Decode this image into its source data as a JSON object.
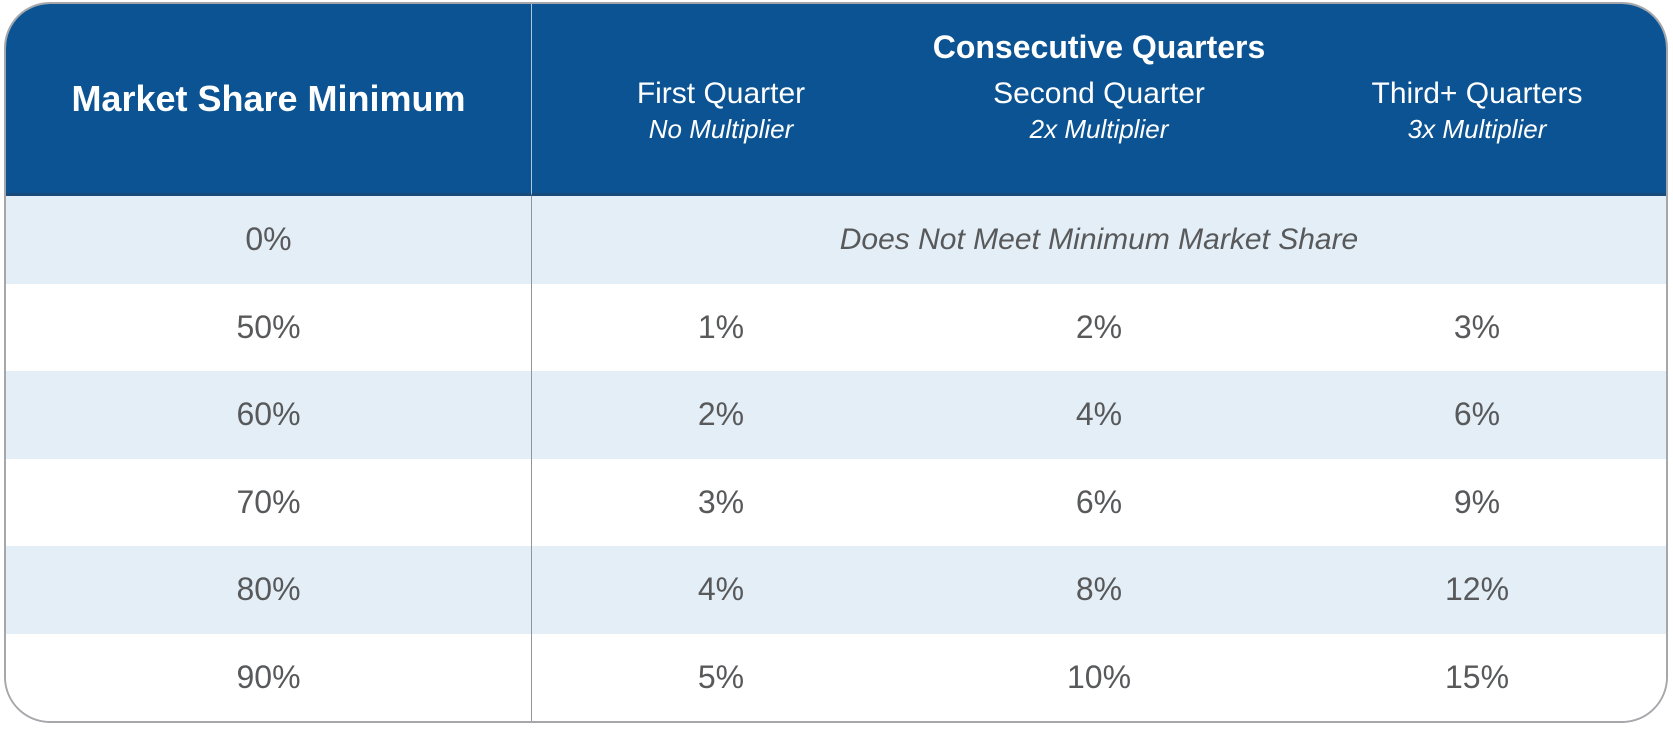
{
  "colors": {
    "header_bg": "#0b5392",
    "header_bottom_line": "#1a4a7a",
    "alt_row_bg": "#e4eef6",
    "row_bg": "#ffffff",
    "header_text": "#ffffff",
    "body_text": "#58595b",
    "card_border": "#a5a7aa",
    "column_divider": "#8f959b"
  },
  "table": {
    "corner_header": "Market Share Minimum",
    "group_header": "Consecutive Quarters",
    "columns": [
      {
        "title": "First Quarter",
        "subtitle": "No Multiplier"
      },
      {
        "title": "Second Quarter",
        "subtitle": "2x Multiplier"
      },
      {
        "title": "Third+ Quarters",
        "subtitle": "3x Multiplier"
      }
    ],
    "rows": [
      {
        "share": "0%",
        "span_note": "Does Not Meet Minimum Market Share"
      },
      {
        "share": "50%",
        "values": [
          "1%",
          "2%",
          "3%"
        ]
      },
      {
        "share": "60%",
        "values": [
          "2%",
          "4%",
          "6%"
        ]
      },
      {
        "share": "70%",
        "values": [
          "3%",
          "6%",
          "9%"
        ]
      },
      {
        "share": "80%",
        "values": [
          "4%",
          "8%",
          "12%"
        ]
      },
      {
        "share": "90%",
        "values": [
          "5%",
          "10%",
          "15%"
        ]
      }
    ]
  },
  "chart_data": {
    "type": "table",
    "title": "Consecutive Quarters",
    "row_header": "Market Share Minimum",
    "column_headers": [
      "First Quarter (No Multiplier)",
      "Second Quarter (2x Multiplier)",
      "Third+ Quarters (3x Multiplier)"
    ],
    "rows": [
      {
        "market_share_minimum": "0%",
        "first_quarter": "Does Not Meet Minimum Market Share",
        "second_quarter": "Does Not Meet Minimum Market Share",
        "third_plus_quarters": "Does Not Meet Minimum Market Share"
      },
      {
        "market_share_minimum": "50%",
        "first_quarter": "1%",
        "second_quarter": "2%",
        "third_plus_quarters": "3%"
      },
      {
        "market_share_minimum": "60%",
        "first_quarter": "2%",
        "second_quarter": "4%",
        "third_plus_quarters": "6%"
      },
      {
        "market_share_minimum": "70%",
        "first_quarter": "3%",
        "second_quarter": "6%",
        "third_plus_quarters": "9%"
      },
      {
        "market_share_minimum": "80%",
        "first_quarter": "4%",
        "second_quarter": "8%",
        "third_plus_quarters": "12%"
      },
      {
        "market_share_minimum": "90%",
        "first_quarter": "5%",
        "second_quarter": "10%",
        "third_plus_quarters": "15%"
      }
    ]
  }
}
